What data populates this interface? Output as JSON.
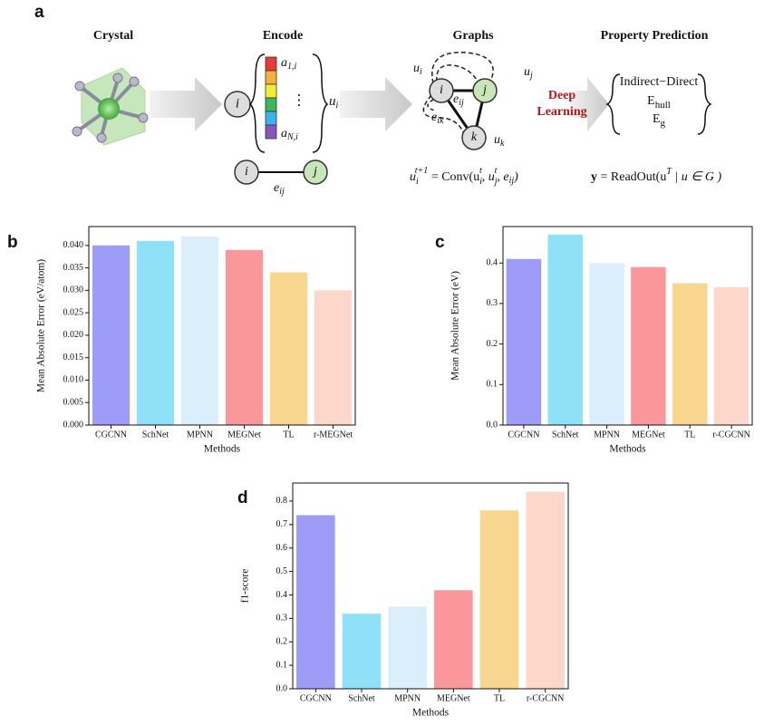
{
  "panel_labels": [
    "a",
    "b",
    "c",
    "d"
  ],
  "diagram": {
    "headings": [
      "Crystal",
      "Encode",
      "Graphs",
      "Property Prediction"
    ],
    "encode": {
      "node": "i",
      "top": [
        "a",
        "1,i"
      ],
      "dots": "⋮",
      "bottom": [
        "a",
        "N,i"
      ],
      "u": [
        "u",
        "i"
      ],
      "edge_nodes": [
        "i",
        "j"
      ],
      "edge_label": [
        "e",
        "ij"
      ]
    },
    "graph": {
      "nodes": [
        "i",
        "j",
        "k"
      ],
      "ui": [
        "u",
        "i"
      ],
      "uj": [
        "u",
        "j"
      ],
      "uk": [
        "u",
        "k"
      ],
      "eij": [
        "e",
        "ij"
      ],
      "eik": [
        "e",
        "ik"
      ],
      "deep": [
        "Deep",
        "Learning"
      ]
    },
    "update": [
      "u",
      "i",
      "t+1",
      " = Conv(u",
      "i",
      "t",
      ", u",
      "j",
      "t",
      ", e",
      "ij",
      ")"
    ],
    "properties": {
      "p1": "Indirect−Direct",
      "p2": [
        "E",
        "hull"
      ],
      "p3": [
        "E",
        "g"
      ]
    },
    "readout": [
      "y",
      " = ReadOut(u",
      "T",
      " | u ∈ G )"
    ]
  },
  "chart_data": [
    {
      "type": "bar",
      "categories": [
        "CGCNN",
        "SchNet",
        "MPNN",
        "MEGNet",
        "TL",
        "r-MEGNet"
      ],
      "values": [
        0.04,
        0.041,
        0.042,
        0.039,
        0.034,
        0.03
      ],
      "colors": [
        "#9d9cf6",
        "#8fe1f8",
        "#dbeefb",
        "#f9979b",
        "#f9d690",
        "#fcd8cb"
      ],
      "xlabel": "Methods",
      "ylabel": "Mean Absolute Error (eV/atom)",
      "ylim": [
        0,
        0.0442
      ],
      "yticks": [
        {
          "value": 0,
          "label": "0.000"
        },
        {
          "value": 0.005,
          "label": "0.005"
        },
        {
          "value": 0.01,
          "label": "0.010"
        },
        {
          "value": 0.015,
          "label": "0.015"
        },
        {
          "value": 0.02,
          "label": "0.020"
        },
        {
          "value": 0.025,
          "label": "0.025"
        },
        {
          "value": 0.03,
          "label": "0.030"
        },
        {
          "value": 0.035,
          "label": "0.035"
        },
        {
          "value": 0.04,
          "label": "0.040"
        }
      ]
    },
    {
      "type": "bar",
      "categories": [
        "CGCNN",
        "SchNet",
        "MPNN",
        "MEGNet",
        "TL",
        "r-CGCNN"
      ],
      "values": [
        0.41,
        0.47,
        0.4,
        0.39,
        0.35,
        0.34
      ],
      "colors": [
        "#9d9cf6",
        "#8fe1f8",
        "#dbeefb",
        "#f9979b",
        "#f9d690",
        "#fcd8cb"
      ],
      "xlabel": "Methods",
      "ylabel": "Mean Absolute Error (eV)",
      "ylim": [
        0,
        0.49
      ],
      "yticks": [
        {
          "value": 0,
          "label": "0.0"
        },
        0.1,
        0.2,
        0.3,
        0.4
      ]
    },
    {
      "type": "bar",
      "categories": [
        "CGCNN",
        "SchNet",
        "MPNN",
        "MEGNet",
        "TL",
        "r-CGCNN"
      ],
      "values": [
        0.74,
        0.32,
        0.35,
        0.42,
        0.76,
        0.84
      ],
      "colors": [
        "#9d9cf6",
        "#8fe1f8",
        "#dbeefb",
        "#f9979b",
        "#f9d690",
        "#fcd8cb"
      ],
      "xlabel": "Methods",
      "ylabel": "f1-score",
      "ylim": [
        0,
        0.877
      ],
      "yticks": [
        {
          "value": 0,
          "label": "0.0"
        },
        0.1,
        0.2,
        0.3,
        0.4,
        0.5,
        0.6,
        0.7,
        0.8
      ]
    }
  ]
}
